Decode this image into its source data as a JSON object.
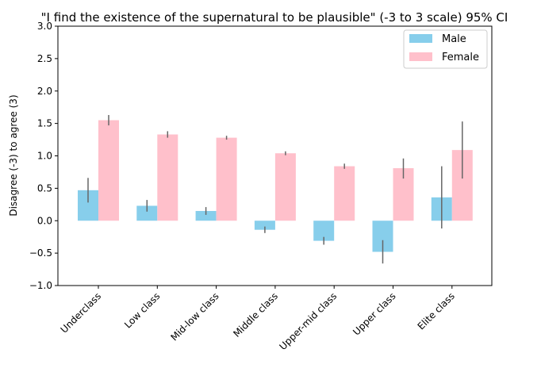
{
  "chart_data": {
    "type": "bar",
    "title": "\"I find the existence of the supernatural to be plausible\" (-3 to 3 scale) 95% CI",
    "xlabel": "",
    "ylabel": "Disagree (-3) to agree (3)",
    "ylim": [
      -1.0,
      3.0
    ],
    "yticks": [
      -1.0,
      -0.5,
      0.0,
      0.5,
      1.0,
      1.5,
      2.0,
      2.5,
      3.0
    ],
    "ytick_labels": [
      "−1.0",
      "−0.5",
      "0.0",
      "0.5",
      "1.0",
      "1.5",
      "2.0",
      "2.5",
      "3.0"
    ],
    "grid": false,
    "legend_position": "top-right",
    "categories": [
      "Underclass",
      "Low class",
      "Mid-low class",
      "Middle class",
      "Upper-mid class",
      "Upper class",
      "Elite class"
    ],
    "series": [
      {
        "name": "Male",
        "color": "#87ceeb",
        "values": [
          0.47,
          0.23,
          0.15,
          -0.14,
          -0.31,
          -0.48,
          0.36
        ],
        "ci_low": [
          0.28,
          0.14,
          0.09,
          -0.19,
          -0.37,
          -0.66,
          -0.12
        ],
        "ci_high": [
          0.66,
          0.32,
          0.21,
          -0.09,
          -0.25,
          -0.3,
          0.84
        ]
      },
      {
        "name": "Female",
        "color": "#ffc0cb",
        "values": [
          1.55,
          1.33,
          1.28,
          1.04,
          0.84,
          0.81,
          1.09
        ],
        "ci_low": [
          1.47,
          1.28,
          1.25,
          1.01,
          0.8,
          0.65,
          0.65
        ],
        "ci_high": [
          1.63,
          1.38,
          1.31,
          1.07,
          0.88,
          0.96,
          1.53
        ]
      }
    ],
    "error_bar_color": "#666666"
  }
}
